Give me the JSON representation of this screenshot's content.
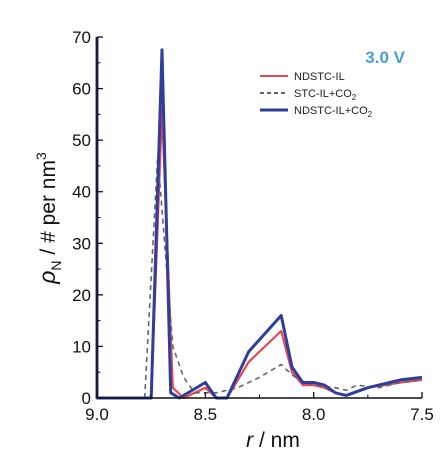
{
  "chart_data": {
    "type": "line",
    "xlabel_var": "r",
    "xlabel_unit": " / nm",
    "ylabel_var": "ρ",
    "ylabel_sub": "N",
    "ylabel_unit": " / # per nm",
    "ylabel_sup": "3",
    "annotation": "3.0 V",
    "xlim": [
      9.0,
      7.5
    ],
    "ylim": [
      0,
      70
    ],
    "x_reversed": true,
    "xticks": [
      9.0,
      8.5,
      8.0,
      7.5
    ],
    "xtick_labels": [
      "9.0",
      "8.5",
      "8.0",
      "7.5"
    ],
    "yticks": [
      0,
      10,
      20,
      30,
      40,
      50,
      60,
      70
    ],
    "ytick_labels": [
      "0",
      "10",
      "20",
      "30",
      "40",
      "50",
      "60",
      "70"
    ],
    "legend_position": "top-right",
    "series": [
      {
        "name": "NDSTC-IL",
        "name_base": "NDSTC-IL",
        "name_sub": "",
        "color": "#e8474c",
        "dash": "solid",
        "x": [
          9.0,
          9.0,
          8.75,
          8.7,
          8.65,
          8.6,
          8.5,
          8.45,
          8.4,
          8.3,
          8.15,
          8.1,
          8.05,
          8.0,
          7.95,
          7.9,
          7.85,
          7.75,
          7.6,
          7.5
        ],
        "y": [
          70,
          0,
          0,
          56,
          2,
          0,
          2,
          0,
          0,
          7,
          13,
          5,
          2.5,
          2.5,
          2,
          1,
          0.5,
          2,
          3,
          3.5
        ]
      },
      {
        "name": "STC-IL+CO2",
        "name_base": "STC-IL+CO",
        "name_sub": "2",
        "color": "#666666",
        "dash": "dashed",
        "x": [
          8.78,
          8.72,
          8.65,
          8.6,
          8.55,
          8.45,
          8.35,
          8.25,
          8.15,
          8.1,
          8.05,
          8.0,
          7.9,
          7.85,
          7.8,
          7.7,
          7.6,
          7.5
        ],
        "y": [
          0,
          47,
          10,
          4,
          1,
          1,
          2,
          4,
          6.5,
          4.5,
          3,
          2.5,
          2,
          1.5,
          2.5,
          2,
          3,
          3.5
        ]
      },
      {
        "name": "NDSTC-IL+CO2",
        "name_base": "NDSTC-IL+CO",
        "name_sub": "2",
        "color": "#2e3e9e",
        "dash": "solid",
        "x": [
          9.0,
          9.0,
          8.75,
          8.7,
          8.66,
          8.62,
          8.5,
          8.45,
          8.4,
          8.3,
          8.15,
          8.1,
          8.05,
          8.0,
          7.95,
          7.9,
          7.85,
          7.75,
          7.6,
          7.5
        ],
        "y": [
          70,
          0,
          0,
          67.5,
          1,
          0,
          3,
          0,
          0,
          9,
          16,
          6,
          3,
          3,
          2.5,
          1,
          0.5,
          2,
          3.5,
          4
        ]
      }
    ]
  }
}
